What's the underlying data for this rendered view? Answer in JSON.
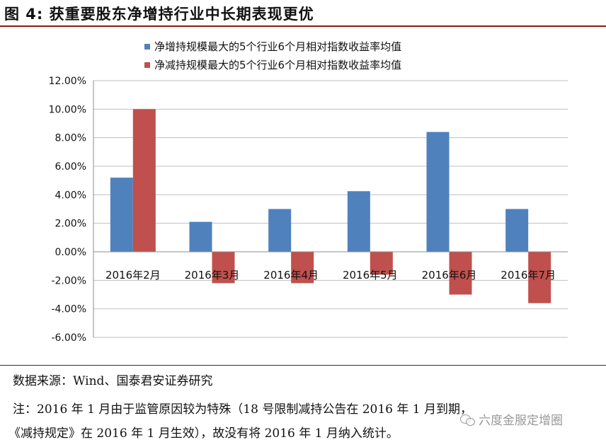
{
  "figure": {
    "title": "图 4:  获重要股东净增持行业中长期表现更优"
  },
  "chart_data": {
    "type": "bar",
    "categories": [
      "2016年2月",
      "2016年3月",
      "2016年4月",
      "2016年5月",
      "2016年6月",
      "2016年7月"
    ],
    "series": [
      {
        "name": "净增持规模最大的5个行业6个月相对指数收益率均值",
        "color": "#4f81bd",
        "values": [
          5.2,
          2.1,
          3.0,
          4.25,
          8.4,
          3.0
        ]
      },
      {
        "name": "净减持规模最大的5个行业6个月相对指数收益率均值",
        "color": "#c0504d",
        "values": [
          10.0,
          -2.2,
          -2.2,
          -1.6,
          -3.0,
          -3.6
        ]
      }
    ],
    "ylim": [
      -6,
      12
    ],
    "yticks": [
      "12.00%",
      "10.00%",
      "8.00%",
      "6.00%",
      "4.00%",
      "2.00%",
      "0.00%",
      "-2.00%",
      "-4.00%",
      "-6.00%"
    ],
    "ytick_values": [
      12,
      10,
      8,
      6,
      4,
      2,
      0,
      -2,
      -4,
      -6
    ],
    "grid": true,
    "legend_position": "top"
  },
  "source": "数据来源：Wind、国泰君安证券研究",
  "note_line1": "注：2016 年 1 月由于监管原因较为特殊（18 号限制减持公告在 2016 年 1 月到期，",
  "note_line2": "《减持规定》在 2016 年 1 月生效），故没有将 2016 年 1 月纳入统计。",
  "watermark": "六度金服定增圈"
}
